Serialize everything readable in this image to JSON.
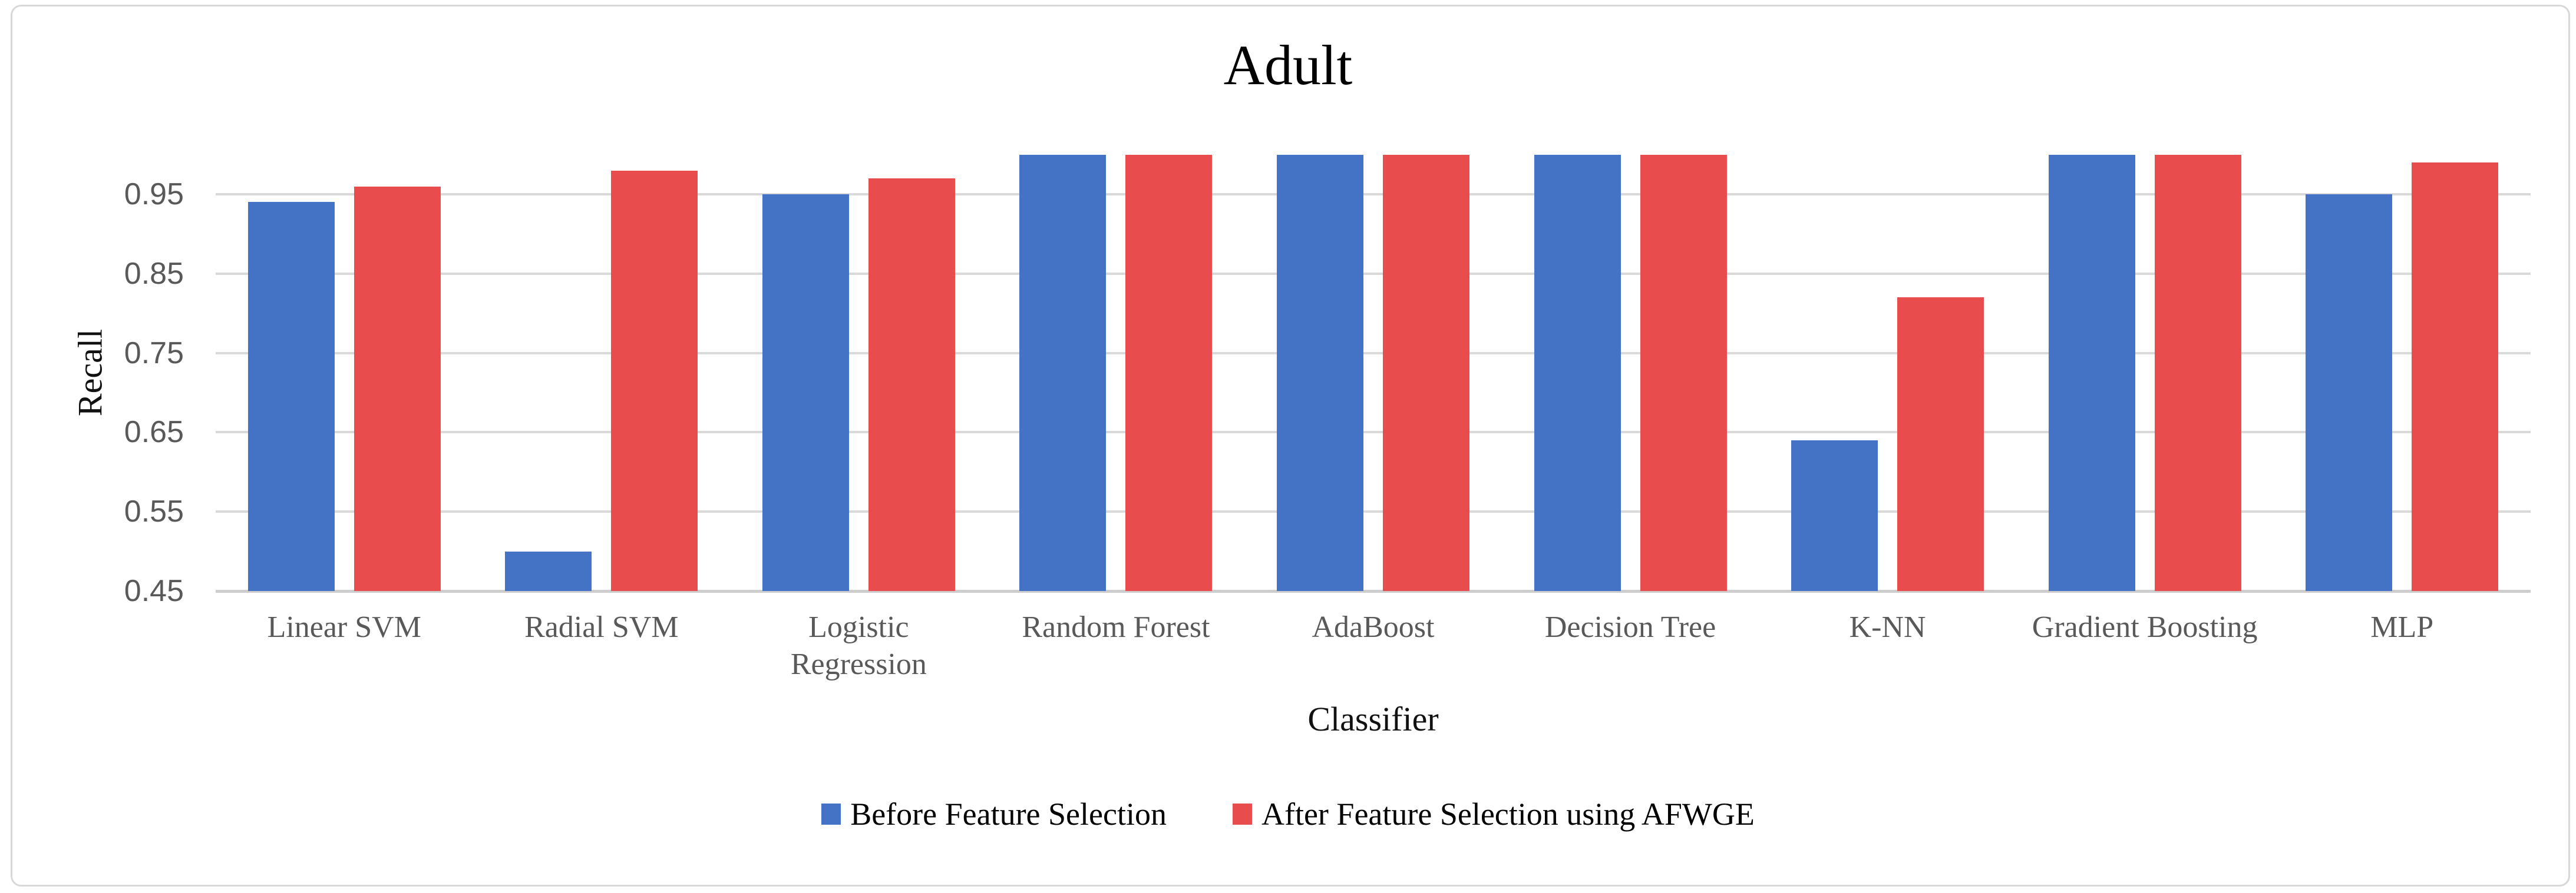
{
  "chart_data": {
    "type": "bar",
    "title": "Adult",
    "xlabel": "Classifier",
    "ylabel": "Recall",
    "categories": [
      "Linear SVM",
      "Radial SVM",
      "Logistic Regression",
      "Random Forest",
      "AdaBoost",
      "Decision Tree",
      "K-NN",
      "Gradient Boosting",
      "MLP"
    ],
    "series": [
      {
        "name": "Before Feature Selection",
        "color": "#4472C4",
        "values": [
          0.94,
          0.5,
          0.95,
          1.0,
          1.0,
          1.0,
          0.64,
          1.0,
          0.95
        ]
      },
      {
        "name": "After Feature Selection using AFWGE",
        "color": "#E84C4C",
        "values": [
          0.96,
          0.98,
          0.97,
          1.0,
          1.0,
          1.0,
          0.82,
          1.0,
          0.99
        ]
      }
    ],
    "yticks": [
      0.45,
      0.55,
      0.65,
      0.75,
      0.85,
      0.95
    ],
    "ylim": [
      0.45,
      1.005
    ],
    "grid": true,
    "legend_position": "bottom",
    "gridline_color": "#D9D9D9",
    "axis_text_color": "#595959",
    "title_color": "#000000"
  }
}
